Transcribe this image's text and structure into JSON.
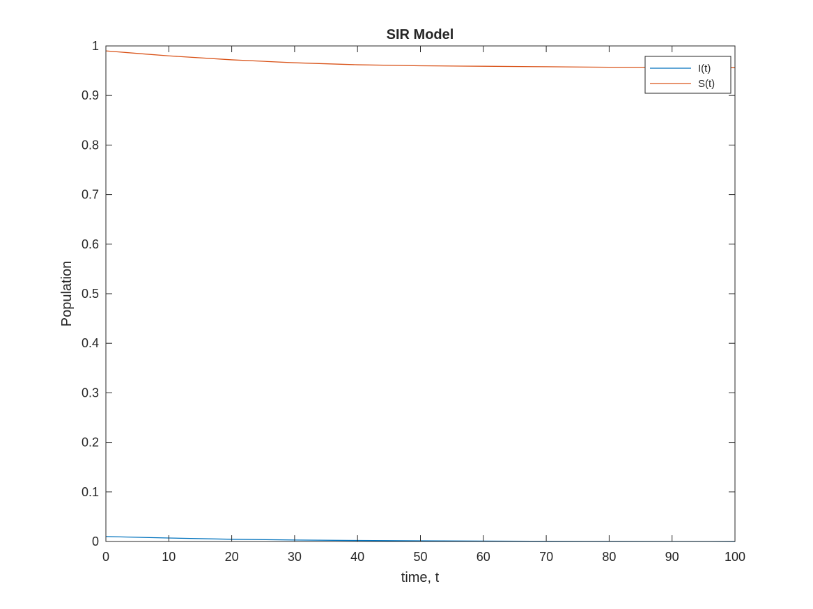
{
  "chart_data": {
    "type": "line",
    "title": "SIR Model",
    "xlabel": "time, t",
    "ylabel": "Population",
    "xlim": [
      0,
      100
    ],
    "ylim": [
      0,
      1
    ],
    "xticks": [
      0,
      10,
      20,
      30,
      40,
      50,
      60,
      70,
      80,
      90,
      100
    ],
    "yticks": [
      0,
      0.1,
      0.2,
      0.3,
      0.4,
      0.5,
      0.6,
      0.7,
      0.8,
      0.9,
      1
    ],
    "grid": false,
    "legend_position": "top-right",
    "x": [
      0,
      10,
      20,
      30,
      40,
      50,
      60,
      70,
      80,
      90,
      100
    ],
    "series": [
      {
        "name": "I(t)",
        "color": "#0072BD",
        "values": [
          0.01,
          0.007,
          0.0045,
          0.003,
          0.002,
          0.0013,
          0.0008,
          0.0005,
          0.0003,
          0.0002,
          0.0001
        ]
      },
      {
        "name": "S(t)",
        "color": "#D95319",
        "values": [
          0.99,
          0.98,
          0.972,
          0.966,
          0.962,
          0.96,
          0.959,
          0.958,
          0.957,
          0.957,
          0.956
        ]
      }
    ]
  }
}
